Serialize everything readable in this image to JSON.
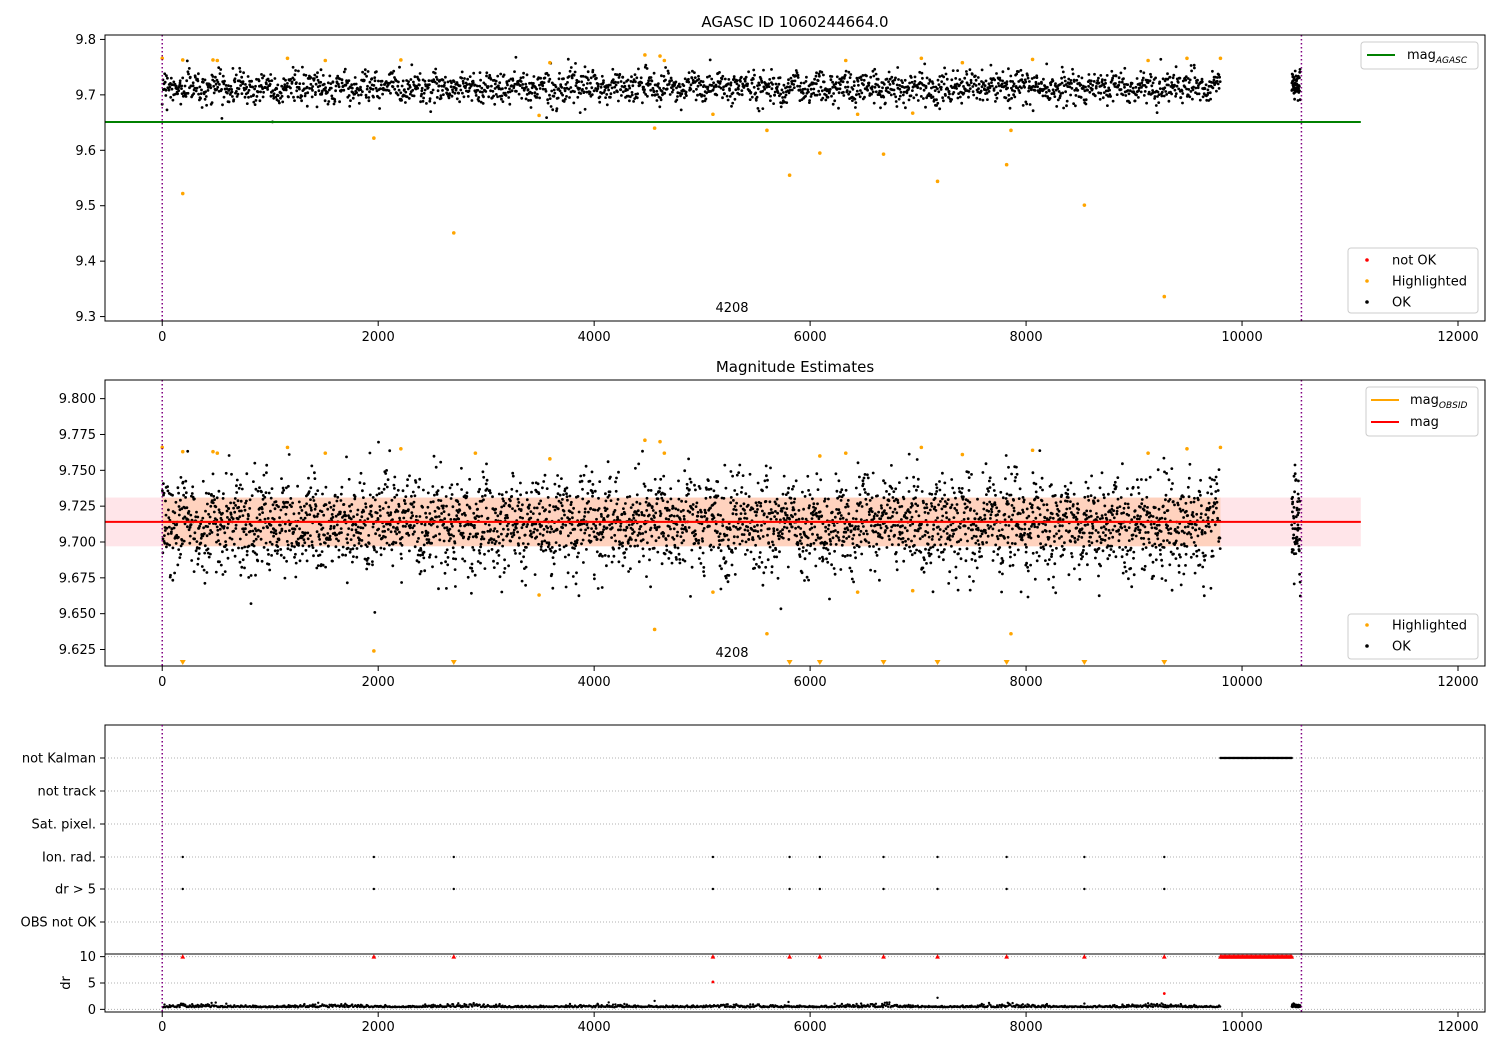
{
  "chart_data": [
    {
      "type": "scatter",
      "title": "AGASC ID 1060244664.0",
      "xlim": [
        -530,
        12250
      ],
      "ylim": [
        9.292,
        9.808
      ],
      "xticks": [
        0,
        2000,
        4000,
        6000,
        8000,
        10000,
        12000
      ],
      "yticks": [
        9.3,
        9.4,
        9.5,
        9.6,
        9.7,
        9.8
      ],
      "ytick_labels": [
        "9.3",
        "9.4",
        "9.5",
        "9.6",
        "9.7",
        "9.8"
      ],
      "obsid_label": "4208",
      "obsid_label_x": 5270,
      "vlines_x": [
        0,
        10550
      ],
      "reference_line": {
        "name": "mag",
        "subscript": "AGASC",
        "value": 9.651,
        "x_range": [
          -530,
          11100
        ],
        "color": "#008000"
      },
      "ok_series": {
        "name": "OK",
        "color": "#000000",
        "segments": [
          [
            0,
            9800,
            2300
          ],
          [
            10460,
            10540,
            50
          ]
        ],
        "mean": 9.714,
        "noise": 0.014
      },
      "highlighted_points": [
        [
          0,
          9.766
        ],
        [
          190,
          9.522
        ],
        [
          190,
          9.763
        ],
        [
          470,
          9.763
        ],
        [
          510,
          9.762
        ],
        [
          1160,
          9.766
        ],
        [
          1510,
          9.762
        ],
        [
          1960,
          9.622
        ],
        [
          2210,
          9.763
        ],
        [
          2700,
          9.451
        ],
        [
          3490,
          9.663
        ],
        [
          3590,
          9.758
        ],
        [
          4470,
          9.772
        ],
        [
          4560,
          9.64
        ],
        [
          4610,
          9.77
        ],
        [
          4650,
          9.762
        ],
        [
          5100,
          9.665
        ],
        [
          5600,
          9.636
        ],
        [
          5810,
          9.555
        ],
        [
          6090,
          9.595
        ],
        [
          6330,
          9.762
        ],
        [
          6440,
          9.665
        ],
        [
          6680,
          9.593
        ],
        [
          6950,
          9.667
        ],
        [
          7030,
          9.766
        ],
        [
          7180,
          9.544
        ],
        [
          7410,
          9.758
        ],
        [
          7820,
          9.574
        ],
        [
          7860,
          9.636
        ],
        [
          8060,
          9.764
        ],
        [
          8540,
          9.501
        ],
        [
          9130,
          9.762
        ],
        [
          9280,
          9.336
        ],
        [
          9490,
          9.766
        ],
        [
          9800,
          9.766
        ]
      ],
      "highlighted_color": "#ffa500",
      "legend_top": {
        "position": "top-right",
        "entries": [
          {
            "name": "mag",
            "subscript": "AGASC",
            "color": "#008000"
          }
        ]
      },
      "legend_bottom": {
        "position": "bottom-right",
        "entries": [
          {
            "name": "not OK",
            "color": "#ff0000"
          },
          {
            "name": "Highlighted",
            "color": "#ffa500"
          },
          {
            "name": "OK",
            "color": "#000000"
          }
        ]
      }
    },
    {
      "type": "scatter",
      "title": "Magnitude Estimates",
      "xlim": [
        -530,
        12250
      ],
      "ylim": [
        9.6135,
        9.813
      ],
      "xticks": [
        0,
        2000,
        4000,
        6000,
        8000,
        10000,
        12000
      ],
      "yticks": [
        9.625,
        9.65,
        9.675,
        9.7,
        9.725,
        9.75,
        9.775,
        9.8
      ],
      "ytick_labels": [
        "9.625",
        "9.650",
        "9.675",
        "9.700",
        "9.725",
        "9.750",
        "9.775",
        "9.800"
      ],
      "obsid_label": "4208",
      "obsid_label_x": 5270,
      "vlines_x": [
        0,
        10550
      ],
      "mag_line": {
        "name": "mag",
        "value": 9.714,
        "band": [
          9.697,
          9.731
        ],
        "x_range": [
          -530,
          11100
        ],
        "color": "#ff0000"
      },
      "mag_obsid": {
        "name": "mag",
        "subscript": "OBSID",
        "value": 9.714,
        "band": [
          9.697,
          9.731
        ],
        "x_range": [
          0,
          9800
        ],
        "color": "#ffa500"
      },
      "ok_series": {
        "name": "OK",
        "color": "#000000",
        "segments": [
          [
            0,
            9800,
            3600
          ],
          [
            10460,
            10540,
            60
          ]
        ],
        "mean": 9.712,
        "noise": 0.016
      },
      "highlighted_points": [
        [
          0,
          9.766
        ],
        [
          190,
          9.763
        ],
        [
          470,
          9.763
        ],
        [
          510,
          9.762
        ],
        [
          1160,
          9.766
        ],
        [
          1510,
          9.762
        ],
        [
          1960,
          9.624
        ],
        [
          2210,
          9.765
        ],
        [
          2900,
          9.762
        ],
        [
          3490,
          9.663
        ],
        [
          3590,
          9.758
        ],
        [
          4470,
          9.771
        ],
        [
          4560,
          9.639
        ],
        [
          4610,
          9.77
        ],
        [
          4650,
          9.762
        ],
        [
          5100,
          9.665
        ],
        [
          5600,
          9.636
        ],
        [
          6090,
          9.76
        ],
        [
          6330,
          9.762
        ],
        [
          6440,
          9.665
        ],
        [
          6950,
          9.666
        ],
        [
          7030,
          9.766
        ],
        [
          7410,
          9.761
        ],
        [
          7860,
          9.636
        ],
        [
          8060,
          9.764
        ],
        [
          9130,
          9.762
        ],
        [
          9490,
          9.765
        ],
        [
          9800,
          9.766
        ]
      ],
      "below_range_markers_x": [
        190,
        2700,
        5810,
        6090,
        6680,
        7180,
        7820,
        8540,
        9280
      ],
      "highlighted_color": "#ffa500",
      "legend_top": {
        "position": "top-right",
        "entries": [
          {
            "name": "mag",
            "subscript": "OBSID",
            "color": "#ffa500"
          },
          {
            "name": "mag",
            "color": "#ff0000"
          }
        ]
      },
      "legend_bottom": {
        "position": "bottom-right",
        "entries": [
          {
            "name": "Highlighted",
            "color": "#ffa500"
          },
          {
            "name": "OK",
            "color": "#000000"
          }
        ]
      }
    },
    {
      "type": "scatter",
      "title": "",
      "xlim": [
        -530,
        12250
      ],
      "flag_rows": [
        "not Kalman",
        "not track",
        "Sat. pixel.",
        "Ion. rad.",
        "dr > 5",
        "OBS not OK"
      ],
      "flag_points": {
        "not Kalman": {
          "x_range": [
            9800,
            10460
          ]
        },
        "not track": {},
        "Sat. pixel.": {},
        "Ion. rad.": {
          "x": [
            190,
            1960,
            2700,
            5100,
            5810,
            6090,
            6680,
            7180,
            7820,
            8540,
            9280
          ]
        },
        "dr > 5": {
          "x": [
            190,
            1960,
            2700,
            5100,
            5810,
            6090,
            6680,
            7180,
            7820,
            8540,
            9280
          ]
        },
        "OBS not OK": {}
      }
    },
    {
      "type": "scatter",
      "ylabel": "dr",
      "xlim": [
        -530,
        12250
      ],
      "ylim": [
        -0.5,
        10.5
      ],
      "yticks": [
        0,
        5,
        10
      ],
      "ytick_labels": [
        "0",
        "5",
        "10"
      ],
      "xticks": [
        0,
        2000,
        4000,
        6000,
        8000,
        10000,
        12000
      ],
      "dr_ok": {
        "segments": [
          [
            0,
            9800,
            1400
          ],
          [
            10460,
            10540,
            40
          ]
        ],
        "mean": 0.4,
        "noise": 0.22,
        "color": "#000000"
      },
      "dr_capped_red": {
        "x": [
          190,
          1960,
          2700,
          5100,
          5810,
          6090,
          6680,
          7180,
          7820,
          8540,
          9280
        ],
        "x_range": [
          9800,
          10460
        ],
        "value": 10,
        "color": "#ff0000"
      },
      "dr_red_points": [
        [
          5100,
          5.2
        ],
        [
          9280,
          3.0
        ]
      ],
      "dr_outliers_black": [
        [
          4560,
          1.6
        ],
        [
          5800,
          1.4
        ],
        [
          7180,
          2.2
        ],
        [
          8540,
          1.1
        ]
      ],
      "vlines_x": [
        0,
        10550
      ]
    }
  ]
}
